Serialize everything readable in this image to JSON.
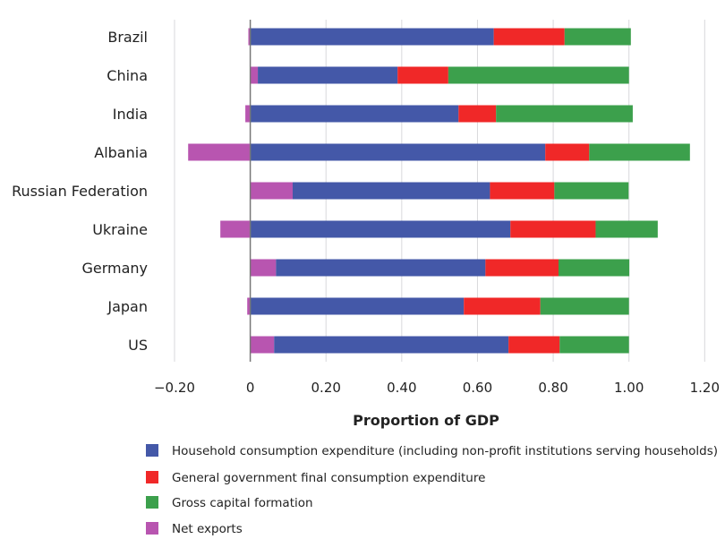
{
  "chart_data": {
    "type": "bar",
    "orientation": "horizontal",
    "stacked": true,
    "title": "",
    "xlabel": "Proportion of GDP",
    "ylabel": "",
    "xlim": [
      -0.2,
      1.2
    ],
    "xticks": [
      -0.2,
      0,
      0.2,
      0.4,
      0.6,
      0.8,
      1.0,
      1.2
    ],
    "xtick_labels": [
      "−0.20",
      "0",
      "0.20",
      "0.40",
      "0.60",
      "0.80",
      "1.00",
      "1.20"
    ],
    "grid": "vertical",
    "legend_placement": "bottom",
    "categories": [
      "Brazil",
      "China",
      "India",
      "Albania",
      "Russian Federation",
      "Ukraine",
      "Germany",
      "Japan",
      "US"
    ],
    "series": [
      {
        "name": "Household consumption expenditure (including non-profit institutions serving households)",
        "color": "#4458a8",
        "values": [
          0.643,
          0.369,
          0.55,
          0.779,
          0.521,
          0.687,
          0.553,
          0.564,
          0.619
        ]
      },
      {
        "name": "General government final consumption expenditure",
        "color": "#f02828",
        "values": [
          0.187,
          0.134,
          0.099,
          0.116,
          0.17,
          0.225,
          0.193,
          0.202,
          0.135
        ]
      },
      {
        "name": "Gross capital formation",
        "color": "#3ca04c",
        "values": [
          0.175,
          0.477,
          0.361,
          0.266,
          0.196,
          0.164,
          0.187,
          0.234,
          0.183
        ]
      },
      {
        "name": "Net exports",
        "color": "#b855b0",
        "values": [
          -0.005,
          0.02,
          -0.013,
          -0.164,
          0.112,
          -0.079,
          0.068,
          -0.008,
          0.063
        ]
      }
    ]
  }
}
